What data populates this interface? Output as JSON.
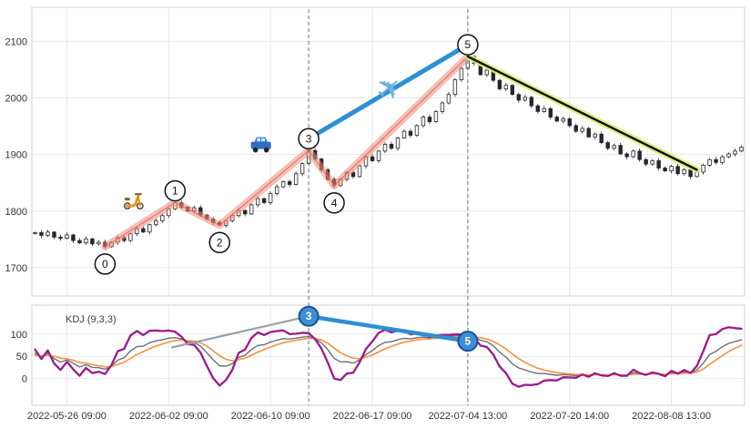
{
  "colors": {
    "candle_border": "#26262b",
    "candle_up_fill": "#ffffff",
    "candle_down_fill": "#26262b",
    "wave_band": "#f08878",
    "wave_core": "#d86a5a",
    "blue_line": "#2e8fd5",
    "trend_black": "#121212",
    "trend_glow": "#dcee7a",
    "dashed_line": "#60798f",
    "grid": "#e4e7ea",
    "panel_border": "#ccd1d6",
    "kdj_j": "#9c1a8a",
    "kdj_d": "#f59140",
    "kdj_k": "#6b6f75",
    "marker_blue_fill": "#3d8fd6",
    "marker_blue_border": "#1a4f9c",
    "gray_line": "#9aa0a6",
    "axis_text": "#333333",
    "scooter_color": "#e8941a",
    "car_color": "#2f6fc2",
    "plane_color": "#6fb3dc"
  },
  "chart_data": {
    "type": "candlestick+kdj",
    "x_axis": {
      "count": 112,
      "tick_indices": [
        5,
        21,
        37,
        53,
        68,
        84,
        100
      ],
      "tick_labels": [
        "2022-05-26 09:00",
        "2022-06-02 09:00",
        "2022-06-10 09:00",
        "2022-06-17 09:00",
        "2022-07-04 13:00",
        "2022-07-20 14:00",
        "2022-08-08 13:00"
      ]
    },
    "price_panel": {
      "y_ticks": [
        1700,
        1800,
        1900,
        2000,
        2100
      ],
      "y_range": [
        1650,
        2160
      ],
      "open_first": 1760,
      "closes": [
        1762,
        1757,
        1763,
        1754,
        1752,
        1758,
        1748,
        1744,
        1751,
        1742,
        1745,
        1737,
        1745,
        1753,
        1748,
        1760,
        1769,
        1763,
        1776,
        1783,
        1792,
        1804,
        1815,
        1807,
        1800,
        1806,
        1793,
        1786,
        1780,
        1775,
        1783,
        1792,
        1801,
        1795,
        1811,
        1822,
        1815,
        1831,
        1843,
        1852,
        1847,
        1866,
        1884,
        1907,
        1892,
        1873,
        1856,
        1845,
        1856,
        1868,
        1861,
        1880,
        1896,
        1889,
        1906,
        1918,
        1911,
        1929,
        1941,
        1934,
        1951,
        1966,
        1958,
        1976,
        1991,
        2006,
        2032,
        2052,
        2073,
        2061,
        2041,
        2049,
        2031,
        2016,
        2022,
        2006,
        1996,
        2001,
        1986,
        1976,
        1981,
        1966,
        1959,
        1963,
        1951,
        1941,
        1946,
        1931,
        1936,
        1921,
        1911,
        1916,
        1901,
        1896,
        1906,
        1891,
        1883,
        1889,
        1876,
        1871,
        1879,
        1866,
        1873,
        1861,
        1869,
        1881,
        1891,
        1886,
        1896,
        1901,
        1906,
        1913
      ]
    },
    "kdj_panel": {
      "label": "KDJ (9,3,3)",
      "params": [
        9,
        3,
        3
      ],
      "y_ticks": [
        0,
        50,
        100
      ],
      "y_range": [
        -60,
        165
      ]
    },
    "annotations": {
      "waves": [
        {
          "label": "0",
          "i": 11,
          "price": 1737,
          "side": "below"
        },
        {
          "label": "1",
          "i": 22,
          "price": 1815,
          "side": "above"
        },
        {
          "label": "2",
          "i": 29,
          "price": 1775,
          "side": "below"
        },
        {
          "label": "3",
          "i": 43,
          "price": 1907,
          "side": "above"
        },
        {
          "label": "4",
          "i": 47,
          "price": 1845,
          "side": "below"
        },
        {
          "label": "5",
          "i": 68,
          "price": 2073,
          "side": "above"
        }
      ],
      "blue_line": {
        "from": {
          "i": 43,
          "price": 1907
        },
        "to": {
          "i": 68,
          "price": 2073
        }
      },
      "trend_line": {
        "from": {
          "i": 68,
          "price": 2073
        },
        "to": {
          "i": 104,
          "price": 1873
        }
      },
      "dashed_lines_i": [
        43,
        68
      ],
      "vehicles": [
        {
          "name": "scooter-icon",
          "i": 15.5,
          "price": 1822
        },
        {
          "name": "car-icon",
          "i": 35.5,
          "price": 1916
        },
        {
          "name": "plane-icon",
          "i": 56,
          "price": 2012,
          "rotate": -40,
          "glyph": "✈"
        }
      ],
      "kdj_markers": [
        {
          "label": "3",
          "i": 43,
          "value": 140
        },
        {
          "label": "5",
          "i": 68,
          "value": 84
        }
      ],
      "kdj_gray_line": {
        "from": {
          "i": 21.5,
          "value": 70
        },
        "to": {
          "i": 43,
          "value": 140
        }
      },
      "kdj_blue_line": {
        "from": {
          "i": 43,
          "value": 140
        },
        "to": {
          "i": 68,
          "value": 84
        }
      }
    }
  }
}
